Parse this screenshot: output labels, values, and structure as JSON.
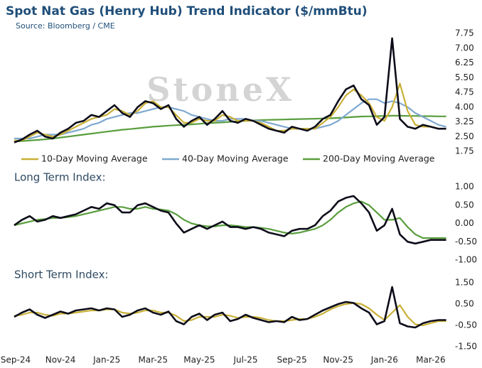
{
  "chart_data": [
    {
      "type": "line",
      "title": "Spot Nat Gas (Henry Hub) Trend Indicator ($/mmBtu)",
      "subtitle": "Source: Bloomberg / CME",
      "annotations": [
        "StoneX"
      ],
      "ylim": [
        1.75,
        7.75
      ],
      "yticks": [
        7.75,
        {
          "value": 7,
          "label": "7.00"
        },
        6.25,
        {
          "value": 5.5,
          "label": "5.50"
        },
        4.75,
        {
          "value": 4,
          "label": "4.00"
        },
        3.25,
        {
          "value": 2.5,
          "label": "2.50"
        },
        1.75
      ],
      "grid": false,
      "legend": "bottom",
      "series": [
        {
          "color": "#0d0d1a",
          "values": [
            2.2,
            2.35,
            2.6,
            2.8,
            2.5,
            2.4,
            2.7,
            2.9,
            3.2,
            3.3,
            3.6,
            3.5,
            3.8,
            4.1,
            3.7,
            3.5,
            4.0,
            4.3,
            4.2,
            3.9,
            4.1,
            3.4,
            3.0,
            3.3,
            3.5,
            3.1,
            3.4,
            3.8,
            3.3,
            3.2,
            3.4,
            3.3,
            3.1,
            2.9,
            2.8,
            2.7,
            3.0,
            2.9,
            2.8,
            3.0,
            3.4,
            3.6,
            4.3,
            4.9,
            5.1,
            4.4,
            4.1,
            3.1,
            3.5,
            7.5,
            3.4,
            3.0,
            2.9,
            3.1,
            3.0,
            2.9,
            2.9
          ]
        },
        {
          "name": "10-Day Moving Average",
          "color": "#c9b037",
          "values": [
            2.3,
            2.3,
            2.5,
            2.7,
            2.6,
            2.5,
            2.6,
            2.8,
            3.0,
            3.2,
            3.4,
            3.5,
            3.6,
            3.9,
            3.8,
            3.6,
            3.8,
            4.2,
            4.3,
            4.0,
            4.0,
            3.6,
            3.2,
            3.2,
            3.4,
            3.3,
            3.3,
            3.6,
            3.5,
            3.3,
            3.3,
            3.3,
            3.2,
            3.0,
            2.8,
            2.8,
            2.9,
            2.9,
            2.9,
            2.9,
            3.2,
            3.5,
            4.0,
            4.6,
            4.9,
            4.6,
            4.2,
            3.5,
            3.3,
            4.0,
            5.2,
            3.8,
            3.1,
            3.0,
            3.0,
            2.9,
            2.9
          ]
        },
        {
          "name": "40-Day Moving Average",
          "color": "#7fa8d0",
          "values": [
            2.4,
            2.4,
            2.4,
            2.5,
            2.6,
            2.6,
            2.6,
            2.7,
            2.8,
            2.9,
            3.1,
            3.2,
            3.4,
            3.5,
            3.6,
            3.7,
            3.7,
            3.8,
            3.9,
            4.0,
            4.0,
            3.9,
            3.8,
            3.6,
            3.5,
            3.4,
            3.3,
            3.3,
            3.4,
            3.4,
            3.4,
            3.3,
            3.3,
            3.2,
            3.1,
            3.0,
            2.9,
            2.9,
            2.9,
            2.9,
            3.0,
            3.1,
            3.3,
            3.6,
            3.9,
            4.2,
            4.4,
            4.4,
            4.2,
            4.3,
            4.2,
            4.0,
            3.7,
            3.5,
            3.3,
            3.1,
            3.0
          ]
        },
        {
          "name": "200-Day Moving Average",
          "color": "#5a9e3e",
          "values": [
            2.25,
            2.27,
            2.3,
            2.33,
            2.36,
            2.4,
            2.45,
            2.5,
            2.55,
            2.6,
            2.65,
            2.7,
            2.75,
            2.8,
            2.85,
            2.88,
            2.92,
            2.96,
            3.0,
            3.03,
            3.06,
            3.08,
            3.1,
            3.12,
            3.15,
            3.18,
            3.2,
            3.22,
            3.25,
            3.27,
            3.3,
            3.32,
            3.34,
            3.35,
            3.36,
            3.37,
            3.38,
            3.39,
            3.4,
            3.41,
            3.42,
            3.43,
            3.45,
            3.47,
            3.5,
            3.52,
            3.53,
            3.54,
            3.55,
            3.56,
            3.56,
            3.55,
            3.55,
            3.54,
            3.54,
            3.53,
            3.53
          ]
        }
      ]
    },
    {
      "type": "line",
      "title": "Long Term Index:",
      "ylim": [
        -1,
        1
      ],
      "yticks": [
        {
          "value": 1,
          "label": "1.00"
        },
        {
          "value": 0.5,
          "label": "0.50"
        },
        {
          "value": 0,
          "label": "0.00"
        },
        {
          "value": -0.5,
          "label": "-0.50"
        },
        {
          "value": -1,
          "label": "-1.00"
        }
      ],
      "grid": false,
      "series": [
        {
          "color": "#0d0d1a",
          "values": [
            -0.05,
            0.1,
            0.2,
            0.05,
            0.1,
            0.2,
            0.15,
            0.2,
            0.25,
            0.35,
            0.45,
            0.4,
            0.55,
            0.5,
            0.3,
            0.3,
            0.5,
            0.55,
            0.45,
            0.35,
            0.3,
            0.0,
            -0.25,
            -0.15,
            -0.05,
            -0.15,
            -0.05,
            0.05,
            -0.1,
            -0.1,
            -0.15,
            -0.1,
            -0.15,
            -0.25,
            -0.3,
            -0.35,
            -0.2,
            -0.15,
            -0.15,
            -0.05,
            0.2,
            0.35,
            0.6,
            0.7,
            0.75,
            0.55,
            0.3,
            -0.2,
            -0.05,
            0.4,
            -0.3,
            -0.5,
            -0.55,
            -0.5,
            -0.45,
            -0.45,
            -0.45
          ]
        },
        {
          "color": "#5a9e3e",
          "values": [
            -0.05,
            0.0,
            0.05,
            0.1,
            0.12,
            0.15,
            0.15,
            0.17,
            0.2,
            0.25,
            0.3,
            0.35,
            0.4,
            0.45,
            0.45,
            0.4,
            0.4,
            0.45,
            0.4,
            0.38,
            0.35,
            0.25,
            0.1,
            0.0,
            -0.05,
            -0.08,
            -0.08,
            -0.05,
            -0.05,
            -0.07,
            -0.1,
            -0.1,
            -0.12,
            -0.15,
            -0.2,
            -0.25,
            -0.28,
            -0.25,
            -0.2,
            -0.15,
            -0.05,
            0.1,
            0.3,
            0.45,
            0.55,
            0.6,
            0.5,
            0.3,
            0.1,
            0.1,
            0.15,
            -0.1,
            -0.3,
            -0.4,
            -0.4,
            -0.4,
            -0.4
          ]
        }
      ]
    },
    {
      "type": "line",
      "title": "Short Term Index:",
      "x": [
        "Sep-24",
        null,
        null,
        null,
        null,
        null,
        "Nov-24",
        null,
        null,
        null,
        null,
        null,
        "Jan-25",
        null,
        null,
        null,
        null,
        null,
        "Mar-25",
        null,
        null,
        null,
        null,
        null,
        "May-25",
        null,
        null,
        null,
        null,
        null,
        "Jul-25",
        null,
        null,
        null,
        null,
        null,
        "Sep-25",
        null,
        null,
        null,
        null,
        null,
        "Nov-25",
        null,
        null,
        null,
        null,
        null,
        "Jan-26",
        null,
        null,
        null,
        null,
        null,
        "Mar-26",
        null,
        null
      ],
      "ylim": [
        -1.5,
        1.5
      ],
      "yticks": [
        {
          "value": 1.5,
          "label": "1.50"
        },
        {
          "value": 0.5,
          "label": "0.50"
        },
        {
          "value": -0.5,
          "label": "-0.50"
        },
        {
          "value": -1.5,
          "label": "-1.50"
        }
      ],
      "grid": false,
      "series": [
        {
          "color": "#0d0d1a",
          "values": [
            -0.1,
            0.1,
            0.25,
            0.0,
            -0.15,
            0.0,
            0.15,
            0.05,
            0.2,
            0.25,
            0.3,
            0.2,
            0.3,
            0.25,
            -0.1,
            0.0,
            0.2,
            0.3,
            0.1,
            0.0,
            0.15,
            -0.3,
            -0.45,
            -0.1,
            0.05,
            -0.25,
            0.0,
            0.1,
            -0.3,
            -0.2,
            0.0,
            -0.15,
            -0.25,
            -0.35,
            -0.3,
            -0.35,
            -0.1,
            -0.25,
            -0.2,
            0.0,
            0.2,
            0.35,
            0.5,
            0.6,
            0.55,
            0.3,
            0.1,
            -0.45,
            -0.3,
            1.3,
            -0.4,
            -0.55,
            -0.6,
            -0.4,
            -0.3,
            -0.25,
            -0.25
          ]
        },
        {
          "color": "#c9b037",
          "values": [
            -0.05,
            0.0,
            0.1,
            0.1,
            0.0,
            -0.05,
            0.05,
            0.05,
            0.1,
            0.15,
            0.2,
            0.2,
            0.25,
            0.25,
            0.1,
            0.05,
            0.1,
            0.2,
            0.2,
            0.1,
            0.1,
            -0.05,
            -0.3,
            -0.25,
            -0.1,
            -0.1,
            -0.1,
            0.0,
            -0.05,
            -0.15,
            -0.1,
            -0.1,
            -0.15,
            -0.25,
            -0.3,
            -0.3,
            -0.25,
            -0.2,
            -0.2,
            -0.1,
            0.05,
            0.25,
            0.4,
            0.5,
            0.55,
            0.5,
            0.3,
            0.0,
            -0.25,
            0.1,
            0.45,
            -0.1,
            -0.45,
            -0.5,
            -0.4,
            -0.3,
            -0.3
          ]
        }
      ]
    }
  ]
}
